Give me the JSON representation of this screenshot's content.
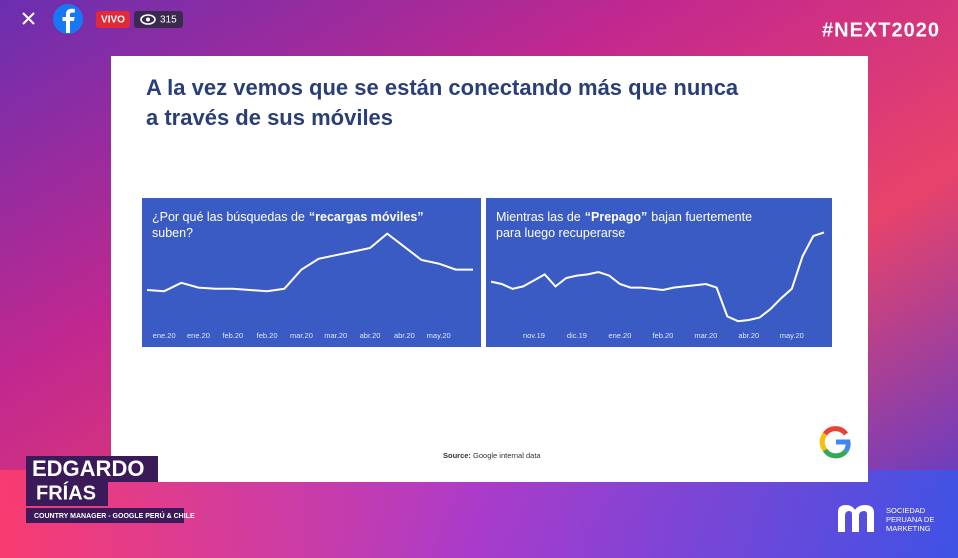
{
  "overlay": {
    "live_badge": "VIVO",
    "viewers": "315",
    "hashtag": "#NEXT2020",
    "speaker": {
      "first_name": "EDGARDO",
      "last_name": "FRÍAS",
      "role": "COUNTRY MANAGER - GOOGLE PERÚ & CHILE"
    },
    "organizer": [
      "SOCIEDAD",
      "PERUANA DE",
      "MARKETING"
    ]
  },
  "slide": {
    "title": [
      "A la vez vemos que se están conectando más que nunca",
      "a través de sus móviles"
    ],
    "source_label": "Source:",
    "source_text": "Google internal data"
  },
  "chart_data": [
    {
      "type": "line",
      "title": [
        [
          "¿Por qué las búsquedas de",
          "“recargas móviles”"
        ],
        [
          "suben?"
        ]
      ],
      "categories": [
        null,
        "ene.20",
        null,
        "ene.20",
        null,
        "feb.20",
        null,
        "feb.20",
        null,
        "mar.20",
        null,
        "mar.20",
        null,
        "abr.20",
        null,
        "abr.20",
        null,
        "may.20",
        null,
        null
      ],
      "values": [
        30,
        29,
        36,
        32,
        31,
        31,
        30,
        29,
        31,
        47,
        56,
        59,
        62,
        65,
        77,
        66,
        55,
        52,
        47,
        47
      ],
      "ylim": [
        0,
        100
      ],
      "color": "#ffffff",
      "background": "#3b5bc4"
    },
    {
      "type": "line",
      "title": [
        [
          "Mientras las de",
          "“Prepago”",
          "bajan fuertemente"
        ],
        [
          "para luego recuperarse"
        ]
      ],
      "categories": [
        null,
        null,
        null,
        null,
        "nov.19",
        null,
        null,
        null,
        "dic.19",
        null,
        null,
        null,
        "ene.20",
        null,
        null,
        null,
        "feb.20",
        null,
        null,
        null,
        "mar.20",
        null,
        null,
        null,
        "abr.20",
        null,
        null,
        null,
        "may.20",
        null,
        null,
        null
      ],
      "values": [
        37,
        35,
        31,
        33,
        38,
        43,
        33,
        40,
        42,
        43,
        45,
        42,
        35,
        32,
        32,
        31,
        30,
        32,
        33,
        34,
        35,
        32,
        8,
        4,
        5,
        7,
        14,
        23,
        31,
        58,
        75,
        78
      ],
      "ylim": [
        0,
        100
      ],
      "color": "#ffffff",
      "background": "#3b5bc4"
    }
  ]
}
